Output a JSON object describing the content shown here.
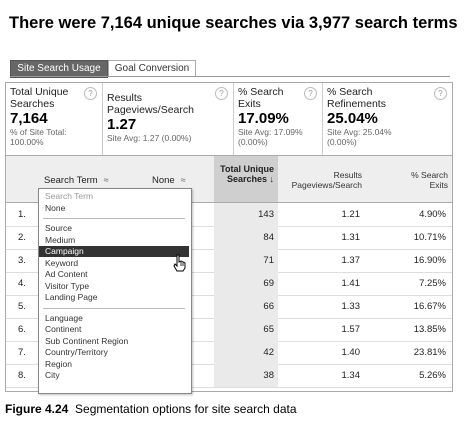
{
  "headline": "There were 7,164 unique searches via 3,977 search terms",
  "tabs": [
    "Site Search Usage",
    "Goal Conversion"
  ],
  "metrics": [
    {
      "label": "Total Unique Searches",
      "value": "7,164",
      "sub": "% of Site Total: 100.00%"
    },
    {
      "label": "Results Pageviews/Search",
      "value": "1.27",
      "sub": "Site Avg: 1.27 (0.00%)"
    },
    {
      "label": "% Search Exits",
      "value": "17.09%",
      "sub": "Site Avg: 17.09% (0.00%)"
    },
    {
      "label": "% Search Refinements",
      "value": "25.04%",
      "sub": "Site Avg: 25.04% (0.00%)"
    }
  ],
  "help_glyph": "?",
  "table": {
    "primary_dimension": "Search Term",
    "secondary_dimension": "None",
    "columns": [
      "Total Unique Searches",
      "Results Pageviews/Search",
      "% Search Exits"
    ],
    "sort_arrow": "↓",
    "rows": [
      {
        "n": "1.",
        "lead": "",
        "a": "143",
        "b": "1.21",
        "c": "4.90%"
      },
      {
        "n": "2.",
        "lead": "",
        "a": "84",
        "b": "1.31",
        "c": "10.71%"
      },
      {
        "n": "3.",
        "lead": "",
        "a": "71",
        "b": "1.37",
        "c": "16.90%"
      },
      {
        "n": "4.",
        "lead": "",
        "a": "69",
        "b": "1.41",
        "c": "7.25%"
      },
      {
        "n": "5.",
        "lead": "",
        "a": "66",
        "b": "1.33",
        "c": "16.67%"
      },
      {
        "n": "6.",
        "lead": "",
        "a": "65",
        "b": "1.57",
        "c": "13.85%"
      },
      {
        "n": "7.",
        "lead": "s",
        "a": "42",
        "b": "1.40",
        "c": "23.81%"
      },
      {
        "n": "8.",
        "lead": "t",
        "a": "38",
        "b": "1.34",
        "c": "5.26%"
      }
    ]
  },
  "dropdown": {
    "groups": [
      [
        "Search Term",
        "None"
      ],
      [
        "Source",
        "Medium",
        "Campaign",
        "Keyword",
        "Ad Content",
        "Visitor Type",
        "Landing Page"
      ],
      [
        "Language",
        "Continent",
        "Sub Continent Region",
        "Country/Territory",
        "Region",
        "City"
      ]
    ],
    "highlighted": "Campaign",
    "dimmed": "Search Term"
  },
  "caption": {
    "figure": "Figure 4.24",
    "text": "Segmentation options for site search data"
  },
  "colors": {
    "active_tab": "#666666",
    "sorted_column": "#cfcfcf",
    "highlight": "#333333"
  }
}
